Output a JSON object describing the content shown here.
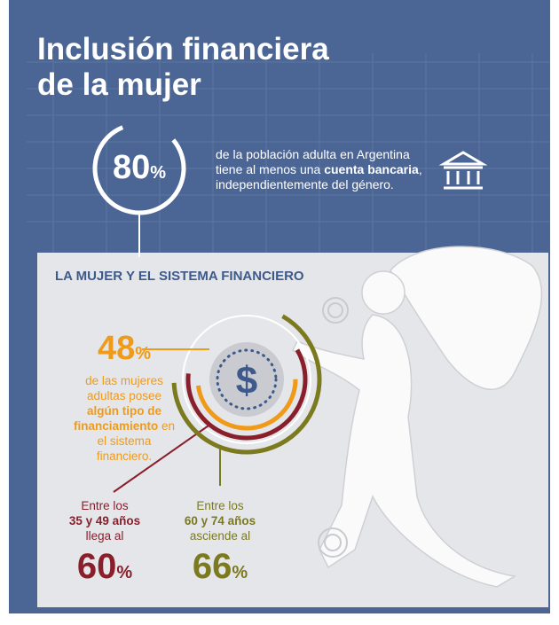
{
  "header": {
    "title": [
      "Inclusión financiera",
      "de la mujer"
    ]
  },
  "stat_total": {
    "value": 80,
    "unit": "%",
    "text": [
      "de la población adulta en Argentina tiene al menos una ",
      "cuenta bancaria",
      ", independientemente del género."
    ]
  },
  "section": {
    "title": "LA MUJER Y EL SISTEMA FINANCIERO"
  },
  "stat_women": {
    "value": 48,
    "unit": "%",
    "text": [
      "de las mujeres adultas posee ",
      "algún tipo de financiamiento",
      " en el sistema financiero."
    ]
  },
  "stat_35_49": {
    "intro": "Entre los",
    "group": "35 y 49 años",
    "verb": "llega al",
    "value": 60,
    "unit": "%"
  },
  "stat_60_74": {
    "intro": "Entre los",
    "group": "60 y 74 años",
    "verb": "asciende al",
    "value": 66,
    "unit": "%"
  },
  "icon": "$"
}
